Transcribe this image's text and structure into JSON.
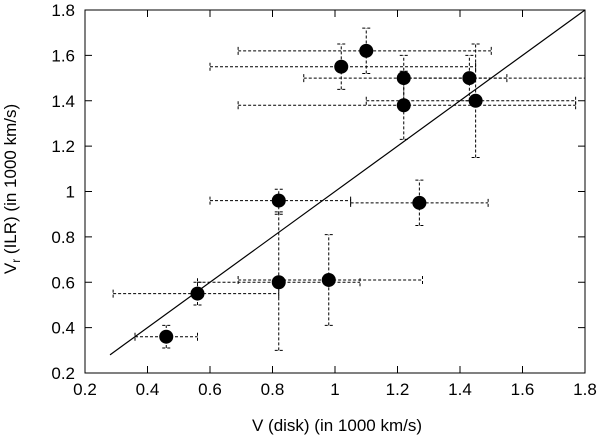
{
  "chart_data": {
    "type": "scatter",
    "xlabel": "V (disk) (in 1000 km/s)",
    "ylabel_main": "V",
    "ylabel_sub": "r",
    "ylabel_rest": " (ILR) (in 1000 km/s)",
    "xlim": [
      0.2,
      1.8
    ],
    "ylim": [
      0.2,
      1.8
    ],
    "xticks": [
      0.2,
      0.4,
      0.6,
      0.8,
      1.0,
      1.2,
      1.4,
      1.6,
      1.8
    ],
    "yticks": [
      0.2,
      0.4,
      0.6,
      0.8,
      1.0,
      1.2,
      1.4,
      1.6,
      1.8
    ],
    "xtick_labels": [
      "0.2",
      "0.4",
      "0.6",
      "0.8",
      "1",
      "1.2",
      "1.4",
      "1.6",
      "1.8"
    ],
    "ytick_labels": [
      "0.2",
      "0.4",
      "0.6",
      "0.8",
      "1",
      "1.2",
      "1.4",
      "1.6",
      "1.8"
    ],
    "grid": false,
    "line": {
      "x": [
        0.28,
        1.8
      ],
      "y": [
        0.28,
        1.8
      ]
    },
    "points": [
      {
        "x": 0.46,
        "y": 0.36,
        "xerr": [
          0.36,
          0.56
        ],
        "yerr": [
          0.31,
          0.41
        ]
      },
      {
        "x": 0.56,
        "y": 0.55,
        "xerr": [
          0.29,
          0.82
        ],
        "yerr": [
          0.5,
          0.6
        ]
      },
      {
        "x": 0.82,
        "y": 0.6,
        "xerr": [
          0.56,
          1.08
        ],
        "yerr": [
          0.3,
          0.91
        ]
      },
      {
        "x": 0.98,
        "y": 0.61,
        "xerr": [
          0.69,
          1.28
        ],
        "yerr": [
          0.41,
          0.81
        ]
      },
      {
        "x": 0.82,
        "y": 0.96,
        "xerr": [
          0.6,
          1.05
        ],
        "yerr": [
          0.9,
          1.01
        ]
      },
      {
        "x": 1.27,
        "y": 0.95,
        "xerr": [
          1.05,
          1.49
        ],
        "yerr": [
          0.85,
          1.05
        ]
      },
      {
        "x": 1.02,
        "y": 1.55,
        "xerr": [
          0.6,
          1.45
        ],
        "yerr": [
          1.45,
          1.65
        ]
      },
      {
        "x": 1.1,
        "y": 1.62,
        "xerr": [
          0.69,
          1.5
        ],
        "yerr": [
          1.52,
          1.72
        ]
      },
      {
        "x": 1.22,
        "y": 1.5,
        "xerr": [
          0.9,
          1.55
        ],
        "yerr": [
          1.4,
          1.6
        ]
      },
      {
        "x": 1.22,
        "y": 1.38,
        "xerr": [
          0.69,
          1.77
        ],
        "yerr": [
          1.23,
          1.53
        ]
      },
      {
        "x": 1.43,
        "y": 1.5,
        "xerr": [
          1.22,
          1.8
        ],
        "yerr": [
          1.4,
          1.6
        ]
      },
      {
        "x": 1.45,
        "y": 1.4,
        "xerr": [
          1.1,
          1.77
        ],
        "yerr": [
          1.15,
          1.65
        ]
      }
    ]
  }
}
